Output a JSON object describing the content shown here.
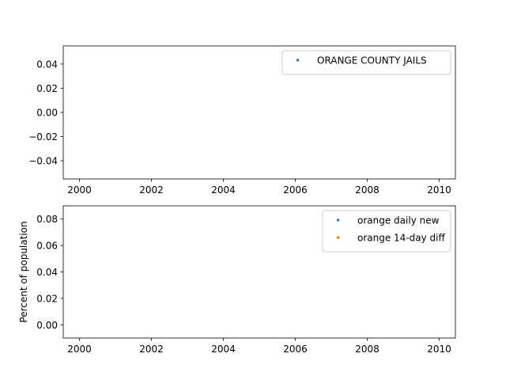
{
  "chart_data": [
    {
      "type": "scatter",
      "title": "",
      "xlabel": "",
      "ylabel": "",
      "xlim": [
        1999.55,
        2010.45
      ],
      "ylim": [
        -0.055,
        0.055
      ],
      "x_ticks": [
        2000,
        2002,
        2004,
        2006,
        2008,
        2010
      ],
      "x_tick_labels": [
        "2000",
        "2002",
        "2004",
        "2006",
        "2008",
        "2010"
      ],
      "y_ticks": [
        0.04,
        0.02,
        0.0,
        -0.02,
        -0.04
      ],
      "y_tick_labels": [
        "0.04",
        "0.02",
        "0.00",
        "−0.02",
        "−0.04"
      ],
      "grid": false,
      "legend_position": "top-right",
      "series": [
        {
          "name": "ORANGE COUNTY JAILS",
          "color": "#1f77b4",
          "x": [],
          "y": []
        }
      ]
    },
    {
      "type": "scatter",
      "title": "",
      "xlabel": "",
      "ylabel": "Percent of population",
      "xlim": [
        1999.55,
        2010.45
      ],
      "ylim": [
        -0.01,
        0.09
      ],
      "x_ticks": [
        2000,
        2002,
        2004,
        2006,
        2008,
        2010
      ],
      "x_tick_labels": [
        "2000",
        "2002",
        "2004",
        "2006",
        "2008",
        "2010"
      ],
      "y_ticks": [
        0.08,
        0.06,
        0.04,
        0.02,
        0.0
      ],
      "y_tick_labels": [
        "0.08",
        "0.06",
        "0.04",
        "0.02",
        "0.00"
      ],
      "grid": false,
      "legend_position": "top-right",
      "series": [
        {
          "name": "orange daily new",
          "color": "#1f77b4",
          "x": [],
          "y": []
        },
        {
          "name": "orange 14-day diff",
          "color": "#ff7f0e",
          "x": [],
          "y": []
        }
      ]
    }
  ]
}
